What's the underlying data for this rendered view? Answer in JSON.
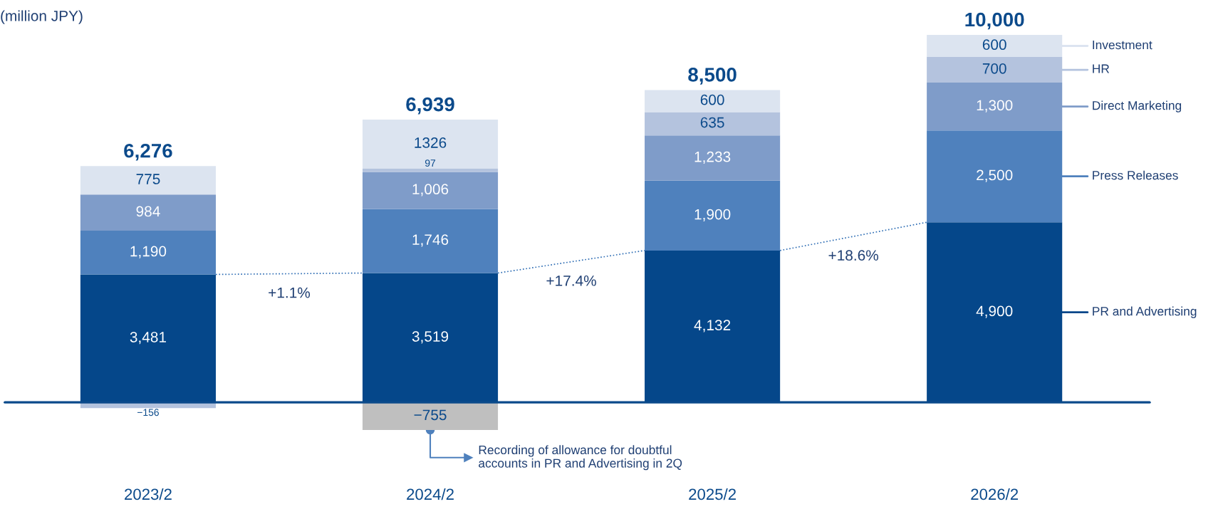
{
  "chart_data": {
    "type": "bar",
    "stacked": true,
    "ylabel": "(million JPY)",
    "categories": [
      "2023/2",
      "2024/2",
      "2025/2",
      "2026/2"
    ],
    "series": [
      {
        "name": "PR and Advertising",
        "color": "#05478a",
        "values": [
          3481,
          3519,
          4132,
          4900
        ],
        "value_labels": [
          "3,481",
          "3,519",
          "4,132",
          "4,900"
        ]
      },
      {
        "name": "Press Releases",
        "color": "#4f81bd",
        "values": [
          1190,
          1746,
          1900,
          2500
        ],
        "value_labels": [
          "1,190",
          "1,746",
          "1,900",
          "2,500"
        ]
      },
      {
        "name": "Direct Marketing",
        "color": "#7f9cc9",
        "values": [
          984,
          1006,
          1233,
          1300
        ],
        "value_labels": [
          "984",
          "1,006",
          "1,233",
          "1,300"
        ]
      },
      {
        "name": "HR",
        "color": "#b4c3de",
        "values": [
          null,
          97,
          635,
          700
        ],
        "value_labels": [
          null,
          "97",
          "635",
          "700"
        ]
      },
      {
        "name": "Investment",
        "color": "#dce4f0",
        "values": [
          775,
          1326,
          600,
          600
        ],
        "value_labels": [
          "775",
          "1326",
          "600",
          "600"
        ]
      },
      {
        "colors": [
          "#b4c3de",
          "#bfbfbf",
          null,
          null
        ],
        "values": [
          -156,
          -755,
          null,
          null
        ],
        "value_labels": [
          "−156",
          "−755",
          null,
          null
        ]
      }
    ],
    "totals": [
      "6,276",
      "6,939",
      "8,500",
      "10,000"
    ],
    "annotations": [
      "+1.1%",
      "+17.4%",
      "+18.6%",
      {
        "text": "Recording of allowance for doubtful\naccounts in PR and Advertising in 2Q",
        "x": "2024/2",
        "y": -755
      }
    ],
    "ref_lines": [
      {
        "axis": "y",
        "value": 0,
        "color": "#0b4a8b"
      }
    ],
    "legend": "right",
    "grid": false
  }
}
